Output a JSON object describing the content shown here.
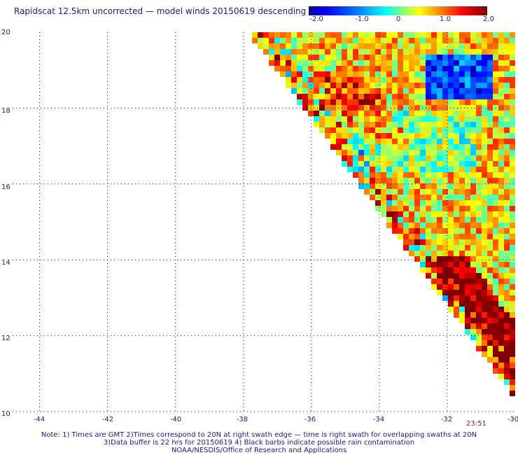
{
  "title": "Rapidscat 12.5km uncorrected — model winds 20150619 descending",
  "colorbar": {
    "labels": [
      "-2.0",
      "-1.0",
      "0",
      "1.0",
      "2.0"
    ],
    "range": [
      -2.0,
      2.0
    ]
  },
  "axes": {
    "x_ticks": [
      "-44",
      "-42",
      "-40",
      "-38",
      "-36",
      "-34",
      "-32",
      "-30"
    ],
    "y_ticks": [
      "20",
      "18",
      "16",
      "14",
      "12",
      "10"
    ],
    "x_range": [
      -45,
      -30
    ],
    "y_range": [
      10,
      20
    ]
  },
  "time_label": "23:51",
  "notes": {
    "line1": "Note: 1) Times are GMT 2)Times correspond to 20N at right swath edge — time is right swath for overlapping swaths at 20N",
    "line2": "3)Data buffer is 22 hrs for 20150619 4) Black barbs indicate possible rain contamination",
    "line3": "NOAA/NESDIS/Office of Research and Applications"
  },
  "colors": {
    "text": "#1a1a80",
    "grid": "#000080",
    "time": "#8b1a1a"
  }
}
